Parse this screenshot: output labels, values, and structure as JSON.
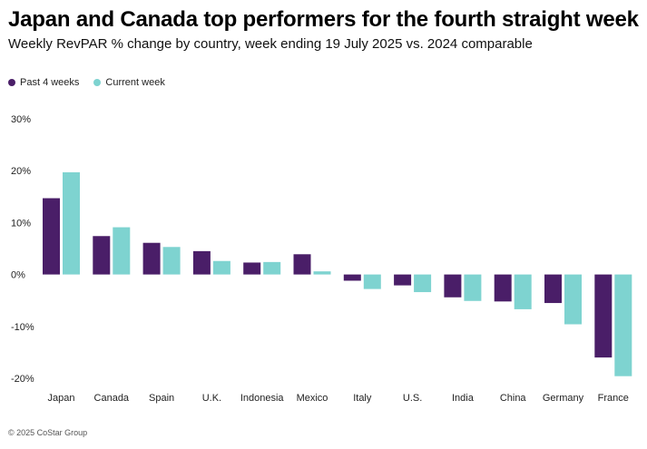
{
  "chart_data": {
    "type": "bar",
    "title": "Japan and Canada top performers for the fourth straight week",
    "subtitle": "Weekly RevPAR % change by country, week ending 19 July 2025 vs. 2024 comparable",
    "categories": [
      "Japan",
      "Canada",
      "Spain",
      "U.K.",
      "Indonesia",
      "Mexico",
      "Italy",
      "U.S.",
      "India",
      "China",
      "Germany",
      "France"
    ],
    "series": [
      {
        "name": "Past 4 weeks",
        "color": "#4a1e68",
        "values": [
          14.7,
          7.4,
          6.1,
          4.5,
          2.3,
          3.9,
          -1.2,
          -2.1,
          -4.4,
          -5.2,
          -5.5,
          -16.0
        ]
      },
      {
        "name": "Current week",
        "color": "#7ed3d0",
        "values": [
          19.7,
          9.1,
          5.3,
          2.6,
          2.4,
          0.6,
          -2.8,
          -3.4,
          -5.1,
          -6.7,
          -9.6,
          -19.6
        ]
      }
    ],
    "ylim": [
      -20,
      30
    ],
    "yticks": [
      30,
      20,
      10,
      0,
      -10,
      -20
    ],
    "ytick_labels": [
      "30%",
      "20%",
      "10%",
      "0%",
      "-10%",
      "-20%"
    ],
    "grid": false,
    "legend_position": "top-left"
  },
  "footer": "© 2025 CoStar Group"
}
